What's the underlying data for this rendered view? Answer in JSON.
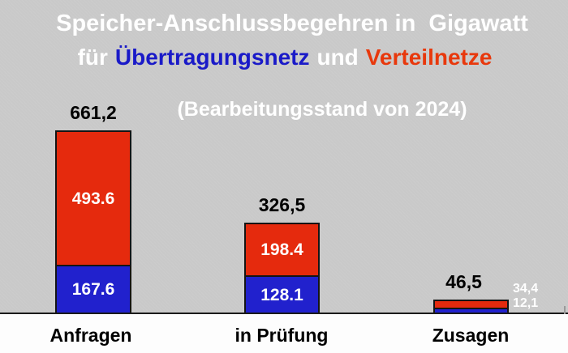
{
  "title": {
    "line1": "Speicher-Anschlussbegehren in  Gigawatt",
    "line2": {
      "part1": "für",
      "part2": "Übertragungsnetz",
      "part3": "und",
      "part4": "Verteilnetze"
    },
    "subtitle": "(Bearbeitungsstand von 2024)"
  },
  "colors": {
    "background": "#c9c9c9",
    "bar_red": "#e52a0d",
    "bar_blue": "#2121cd",
    "title_blue": "#1a1ac8",
    "title_red": "#e8380c",
    "axis": "#1b1b1b"
  },
  "chart_data": {
    "type": "bar",
    "stacked": true,
    "unit": "Gigawatt",
    "title": "Speicher-Anschlussbegehren in Gigawatt für Übertragungsnetz und Verteilnetze",
    "subtitle": "(Bearbeitungsstand von 2024)",
    "categories": [
      "Anfragen",
      "in Prüfung",
      "Zusagen"
    ],
    "series": [
      {
        "name": "Verteilnetze",
        "color": "#e52a0d",
        "values": [
          493.6,
          198.4,
          34.4
        ]
      },
      {
        "name": "Übertragungsnetz",
        "color": "#2121cd",
        "values": [
          167.6,
          128.1,
          12.1
        ]
      }
    ],
    "totals": [
      661.2,
      326.5,
      46.5
    ],
    "grid": false,
    "legend_position": "encoded-in-title-colors"
  },
  "bars": [
    {
      "category": "Anfragen",
      "total_label": "661,2",
      "red_label": "493.6",
      "blue_label": "167.6"
    },
    {
      "category": "in Prüfung",
      "total_label": "326,5",
      "red_label": "198.4",
      "blue_label": "128.1"
    },
    {
      "category": "Zusagen",
      "total_label": "46,5",
      "red_label": "34,4",
      "blue_label": "12,1"
    }
  ]
}
